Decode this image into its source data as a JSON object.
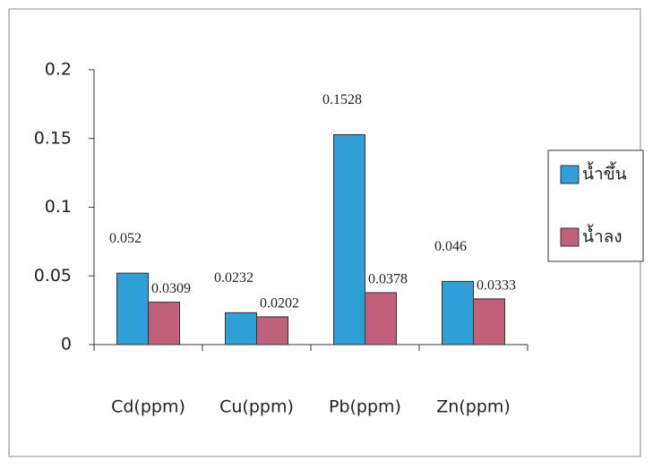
{
  "chart_data": {
    "type": "bar",
    "categories": [
      "Cd(ppm)",
      "Cu(ppm)",
      "Pb(ppm)",
      "Zn(ppm)"
    ],
    "series": [
      {
        "name": "น้ำขึ้น",
        "color": "#2f9fd6",
        "values": [
          0.052,
          0.0232,
          0.1528,
          0.046
        ]
      },
      {
        "name": "น้ำลง",
        "color": "#c0607a",
        "values": [
          0.0309,
          0.0202,
          0.0378,
          0.0333
        ]
      }
    ],
    "ylim": [
      0,
      0.2
    ],
    "yticks": [
      0,
      0.05,
      0.1,
      0.15,
      0.2
    ],
    "grid": false,
    "legend": "right"
  }
}
